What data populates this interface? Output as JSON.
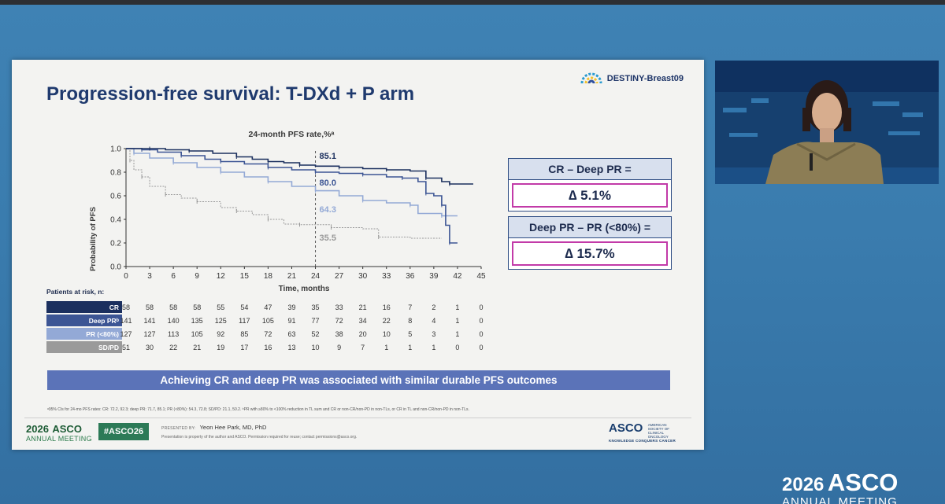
{
  "slide": {
    "title": "Progression-free survival: T-DXd + P arm",
    "logo_text": "DESTINY-Breast09",
    "banner": "Achieving CR and deep PR was associated with similar durable PFS outcomes",
    "footnote": "ᵃ95% CIs for 24-mo PFS rates: CR: 72.2, 92.3; deep PR: 71.7, 85.1; PR (<80%): 54.3, 72.8; SD/PD: 21.1, 50.2. ᵇPR with ≥80% to <100% reduction in TL sum and CR or non-CR/non-PD in non-TLs, or CR in TL and non-CR/non-PD in non-TLs.",
    "delta_boxes": [
      {
        "label": "CR – Deep PR =",
        "value": "∆ 5.1%"
      },
      {
        "label": "Deep PR – PR (<80%) =",
        "value": "∆ 15.7%"
      }
    ],
    "footer": {
      "year": "2026",
      "asco": "ASCO",
      "meeting": "ANNUAL MEETING",
      "hashtag": "#ASCO26",
      "presented_by_label": "PRESENTED BY:",
      "presenter": "Yeon Hee Park, MD, PhD",
      "property_note": "Presentation is property of the author and ASCO. Permission required for reuse; contact permissions@asco.org.",
      "asco_right": "ASCO",
      "society": "AMERICAN SOCIETY OF CLINICAL ONCOLOGY",
      "tagline": "KNOWLEDGE CONQUERS CANCER"
    }
  },
  "broadcast_logo": {
    "year": "2026",
    "asco": "ASCO",
    "meeting": "ANNUAL MEETING"
  },
  "colors": {
    "cr": "#1b2f5e",
    "deep_pr": "#3c5594",
    "pr": "#93a9d6",
    "sdpd": "#9a9a9a",
    "banner": "#5b73b8",
    "delta_border": "#c23aa8"
  },
  "chart_data": {
    "type": "line",
    "title": "24-month PFS rate,%ᵃ",
    "xlabel": "Time, months",
    "ylabel": "Probability of PFS",
    "xlim": [
      0,
      45
    ],
    "ylim": [
      0,
      1.0
    ],
    "xticks": [
      0,
      3,
      6,
      9,
      12,
      15,
      18,
      21,
      24,
      27,
      30,
      33,
      36,
      39,
      42,
      45
    ],
    "yticks": [
      "0.0",
      "0.2",
      "0.4",
      "0.6",
      "0.8",
      "1.0"
    ],
    "reference_line_x": 24,
    "series": [
      {
        "name": "CR",
        "color": "#1b2f5e",
        "label_24mo": "85.1",
        "points": [
          [
            0,
            1.0
          ],
          [
            3,
            1.0
          ],
          [
            5,
            0.99
          ],
          [
            8,
            0.98
          ],
          [
            11,
            0.96
          ],
          [
            14,
            0.93
          ],
          [
            16,
            0.91
          ],
          [
            18,
            0.89
          ],
          [
            20,
            0.88
          ],
          [
            22,
            0.86
          ],
          [
            24,
            0.851
          ],
          [
            27,
            0.84
          ],
          [
            30,
            0.83
          ],
          [
            33,
            0.82
          ],
          [
            36,
            0.81
          ],
          [
            38,
            0.75
          ],
          [
            40,
            0.72
          ],
          [
            41,
            0.7
          ],
          [
            44,
            0.7
          ]
        ]
      },
      {
        "name": "Deep PRᵇ",
        "color": "#3c5594",
        "label_24mo": "80.0",
        "points": [
          [
            0,
            1.0
          ],
          [
            2,
            0.99
          ],
          [
            4,
            0.97
          ],
          [
            7,
            0.94
          ],
          [
            10,
            0.91
          ],
          [
            12,
            0.89
          ],
          [
            15,
            0.87
          ],
          [
            18,
            0.84
          ],
          [
            21,
            0.82
          ],
          [
            24,
            0.8
          ],
          [
            27,
            0.79
          ],
          [
            30,
            0.78
          ],
          [
            33,
            0.76
          ],
          [
            35,
            0.75
          ],
          [
            37,
            0.72
          ],
          [
            38,
            0.62
          ],
          [
            39,
            0.6
          ],
          [
            40,
            0.52
          ],
          [
            40.5,
            0.35
          ],
          [
            41,
            0.2
          ],
          [
            42,
            0.2
          ]
        ]
      },
      {
        "name": "PR (<80%)",
        "color": "#93a9d6",
        "label_24mo": "64.3",
        "points": [
          [
            0,
            1.0
          ],
          [
            1,
            0.96
          ],
          [
            3,
            0.92
          ],
          [
            6,
            0.88
          ],
          [
            9,
            0.84
          ],
          [
            12,
            0.8
          ],
          [
            15,
            0.76
          ],
          [
            18,
            0.72
          ],
          [
            21,
            0.68
          ],
          [
            24,
            0.643
          ],
          [
            27,
            0.6
          ],
          [
            30,
            0.56
          ],
          [
            33,
            0.54
          ],
          [
            36,
            0.52
          ],
          [
            37,
            0.45
          ],
          [
            40,
            0.43
          ],
          [
            42,
            0.43
          ]
        ]
      },
      {
        "name": "SD/PD",
        "color": "#9a9a9a",
        "label_24mo": "35.5",
        "points": [
          [
            0,
            1.0
          ],
          [
            0.5,
            0.9
          ],
          [
            1,
            0.82
          ],
          [
            2,
            0.76
          ],
          [
            3,
            0.68
          ],
          [
            5,
            0.61
          ],
          [
            7,
            0.58
          ],
          [
            9,
            0.55
          ],
          [
            12,
            0.5
          ],
          [
            14,
            0.47
          ],
          [
            16,
            0.44
          ],
          [
            18,
            0.4
          ],
          [
            20,
            0.36
          ],
          [
            22,
            0.355
          ],
          [
            24,
            0.355
          ],
          [
            26,
            0.33
          ],
          [
            30,
            0.32
          ],
          [
            32,
            0.25
          ],
          [
            36,
            0.24
          ],
          [
            40,
            0.24
          ]
        ]
      }
    ]
  },
  "risk_table": {
    "title": "Patients at risk, n:",
    "columns": [
      "0",
      "3",
      "6",
      "9",
      "12",
      "15",
      "18",
      "21",
      "24",
      "27",
      "30",
      "33",
      "36",
      "39",
      "42",
      "45"
    ],
    "rows": [
      {
        "label": "CR",
        "values": [
          "58",
          "58",
          "58",
          "58",
          "55",
          "54",
          "47",
          "39",
          "35",
          "33",
          "21",
          "16",
          "7",
          "2",
          "1",
          "0"
        ]
      },
      {
        "label": "Deep PRᵇ",
        "values": [
          "141",
          "141",
          "140",
          "135",
          "125",
          "117",
          "105",
          "91",
          "77",
          "72",
          "34",
          "22",
          "8",
          "4",
          "1",
          "0"
        ]
      },
      {
        "label": "PR (<80%)",
        "values": [
          "127",
          "127",
          "113",
          "105",
          "92",
          "85",
          "72",
          "63",
          "52",
          "38",
          "20",
          "10",
          "5",
          "3",
          "1",
          "0"
        ]
      },
      {
        "label": "SD/PD",
        "values": [
          "51",
          "30",
          "22",
          "21",
          "19",
          "17",
          "16",
          "13",
          "10",
          "9",
          "7",
          "1",
          "1",
          "1",
          "0",
          "0"
        ]
      }
    ]
  }
}
